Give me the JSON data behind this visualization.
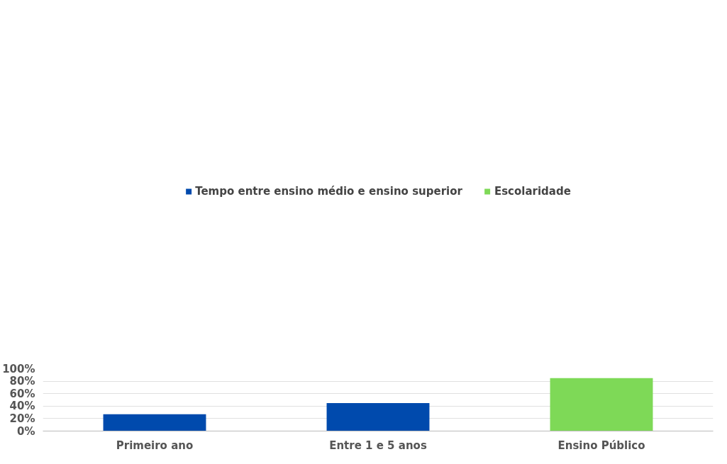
{
  "chart_data": {
    "type": "bar",
    "categories": [
      "Primeiro ano",
      "Entre 1 e 5 anos",
      "Ensino Público"
    ],
    "series": [
      {
        "name": "Tempo entre ensino médio e ensino superior",
        "color": "#004aad",
        "values": [
          27,
          45,
          null
        ]
      },
      {
        "name": "Escolaridade",
        "color": "#7ed957",
        "values": [
          null,
          null,
          85
        ]
      }
    ],
    "ylim": [
      0,
      100
    ],
    "yticks": [
      {
        "value": 0,
        "label": "0%"
      },
      {
        "value": 20,
        "label": "20%"
      },
      {
        "value": 40,
        "label": "40%"
      },
      {
        "value": 60,
        "label": "60%"
      },
      {
        "value": 80,
        "label": "80%"
      },
      {
        "value": 100,
        "label": "100%"
      }
    ],
    "grid": "y",
    "legend": "top"
  }
}
